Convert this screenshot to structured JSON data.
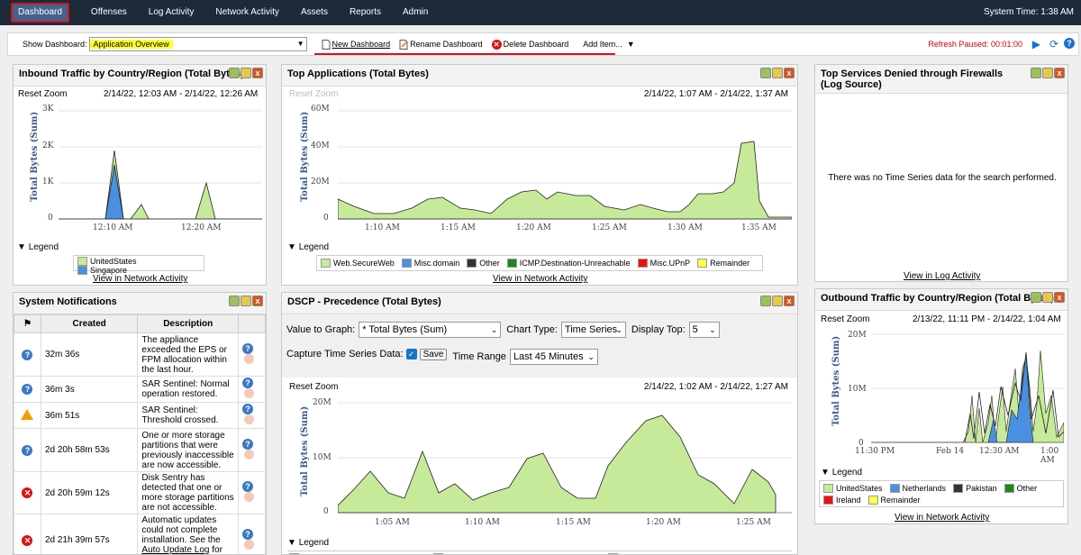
{
  "nav": {
    "items": [
      "Dashboard",
      "Offenses",
      "Log Activity",
      "Network Activity",
      "Assets",
      "Reports",
      "Admin"
    ],
    "system_time": "System Time: 1:38 AM"
  },
  "toolbar": {
    "show_label": "Show Dashboard:",
    "selected": "Application Overview",
    "new": "New Dashboard",
    "rename": "Rename Dashboard",
    "delete": "Delete Dashboard",
    "add": "Add Item...",
    "refresh": "Refresh Paused: 00:01:00"
  },
  "colors": {
    "nav_bg": "#1c2a3a",
    "accent_red": "#d0141b",
    "area_green": "#c6ea9a",
    "area_blue": "#4a90e2"
  },
  "inbound": {
    "title": "Inbound Traffic by Country/Region (Total Bytes)",
    "reset": "Reset Zoom",
    "range": "2/14/22, 12:03 AM - 2/14/22, 12:26 AM",
    "ylabel": "Total Bytes (Sum)",
    "yticks": [
      "3K",
      "2K",
      "1K",
      "0"
    ],
    "xticks": [
      "12:10 AM",
      "12:20 AM"
    ],
    "legend_label": "Legend",
    "legend": [
      {
        "name": "UnitedStates",
        "color": "#c6ea9a"
      },
      {
        "name": "Singapore",
        "color": "#4a90e2"
      }
    ],
    "link": "View in Network Activity"
  },
  "topapps": {
    "title": "Top Applications (Total Bytes)",
    "reset": "Reset Zoom",
    "range": "2/14/22, 1:07 AM - 2/14/22, 1:37 AM",
    "ylabel": "Total Bytes (Sum)",
    "yticks": [
      "60M",
      "40M",
      "20M",
      "0"
    ],
    "xticks": [
      "1:10 AM",
      "1:15 AM",
      "1:20 AM",
      "1:25 AM",
      "1:30 AM",
      "1:35 AM"
    ],
    "legend_label": "Legend",
    "legend": [
      {
        "name": "Web.SecureWeb",
        "color": "#c6ea9a"
      },
      {
        "name": "Misc.domain",
        "color": "#4a90e2"
      },
      {
        "name": "Other",
        "color": "#333333"
      },
      {
        "name": "ICMP.Destination-Unreachable",
        "color": "#1a8a1a"
      },
      {
        "name": "Misc.UPnP",
        "color": "#ee1111"
      },
      {
        "name": "Remainder",
        "color": "#ffff44"
      }
    ],
    "link": "View in Network Activity"
  },
  "services": {
    "title": "Top Services Denied through Firewalls (Log Source)",
    "empty": "There was no Time Series data for the search performed.",
    "link": "View in Log Activity"
  },
  "notifications": {
    "title": "System Notifications",
    "headers": [
      "Created",
      "Description"
    ],
    "rows": [
      {
        "icon": "info",
        "created": "32m 36s",
        "desc": "The appliance exceeded the EPS or FPM allocation within the last hour."
      },
      {
        "icon": "info",
        "created": "36m 3s",
        "desc": "SAR Sentinel: Normal operation restored."
      },
      {
        "icon": "warn",
        "created": "36m 51s",
        "desc": "SAR Sentinel: Threshold crossed."
      },
      {
        "icon": "info",
        "created": "2d 20h 58m 53s",
        "desc": "One or more storage partitions that were previously inaccessible are now accessible."
      },
      {
        "icon": "error",
        "created": "2d 20h 59m 12s",
        "desc": "Disk Sentry has detected that one or more storage partitions are not accessible."
      },
      {
        "icon": "error",
        "created": "2d 21h 39m 57s",
        "desc": "Automatic updates could not complete installation. See the",
        "link": "Auto Update Log",
        "desc_after": "for details."
      }
    ]
  },
  "dscp": {
    "title": "DSCP - Precedence (Total Bytes)",
    "value_label": "Value to Graph:",
    "value": "* Total Bytes (Sum)",
    "chart_type_label": "Chart Type:",
    "chart_type": "Time Series",
    "display_top_label": "Display Top:",
    "display_top": "5",
    "capture_label": "Capture Time Series Data:",
    "save": "Save",
    "time_range_label": "Time Range",
    "time_range": "Last 45 Minutes",
    "reset": "Reset Zoom",
    "range": "2/14/22, 1:02 AM - 2/14/22, 1:27 AM",
    "ylabel": "Total Bytes (Sum)",
    "yticks": [
      "20M",
      "10M",
      "0"
    ],
    "xticks": [
      "1:05 AM",
      "1:10 AM",
      "1:15 AM",
      "1:20 AM",
      "1:25 AM"
    ],
    "legend_label": "Legend"
  },
  "outbound": {
    "title": "Outbound Traffic by Country/Region (Total Bytes)",
    "reset": "Reset Zoom",
    "range": "2/13/22, 11:11 PM - 2/14/22, 1:04 AM",
    "ylabel": "Total Bytes (Sum)",
    "yticks": [
      "20M",
      "10M",
      "0"
    ],
    "xticks": [
      "11:30 PM",
      "Feb 14",
      "12:30 AM",
      "1:00 AM"
    ],
    "legend_label": "Legend",
    "legend": [
      {
        "name": "UnitedStates",
        "color": "#c6ea9a"
      },
      {
        "name": "Netherlands",
        "color": "#4a90e2"
      },
      {
        "name": "Pakistan",
        "color": "#333333"
      },
      {
        "name": "Other",
        "color": "#1a8a1a"
      },
      {
        "name": "Ireland",
        "color": "#ee1111"
      },
      {
        "name": "Remainder",
        "color": "#ffff44"
      }
    ],
    "link": "View in Network Activity"
  }
}
